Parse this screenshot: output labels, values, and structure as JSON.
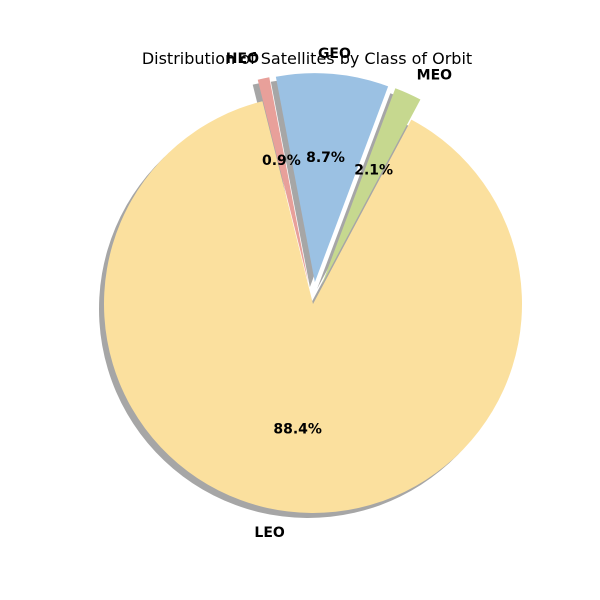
{
  "chart_data": {
    "type": "pie",
    "title": "Distribution of Satellites by Class of Orbit",
    "slices": [
      {
        "label": "LEO",
        "value": 88.4,
        "pct_label": "88.4%",
        "color": "#fbe09e",
        "exploded": false
      },
      {
        "label": "MEO",
        "value": 2.1,
        "pct_label": "2.1%",
        "color": "#c6d88f",
        "exploded": true
      },
      {
        "label": "GEO",
        "value": 8.7,
        "pct_label": "8.7%",
        "color": "#9bc1e3",
        "exploded": true
      },
      {
        "label": "HEO",
        "value": 0.9,
        "pct_label": "0.9%",
        "color": "#e8a09a",
        "exploded": true
      }
    ],
    "shadow": true,
    "legend": "none"
  }
}
